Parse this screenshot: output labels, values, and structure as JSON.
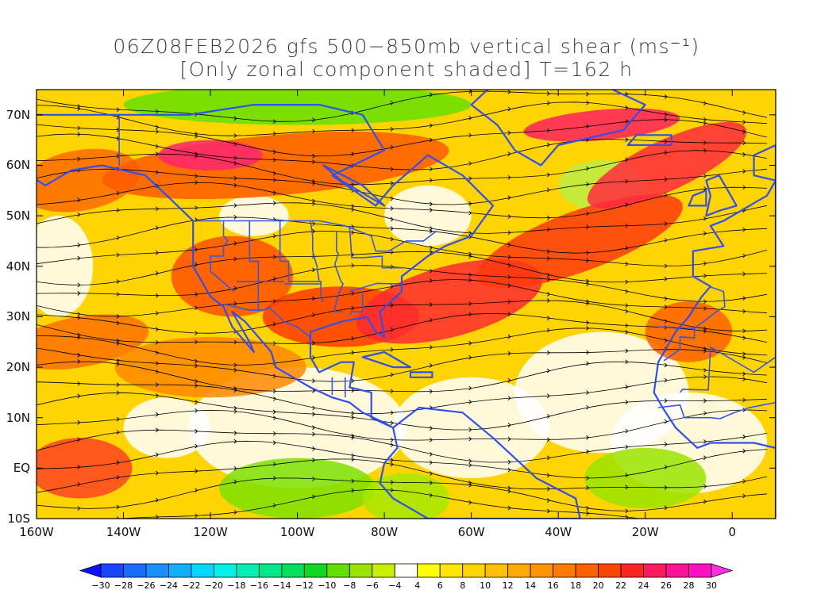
{
  "title": {
    "line1": "06Z08FEB2026 gfs 500−850mb vertical shear (ms⁻¹)",
    "line2": "[Only zonal component shaded] T=162 h"
  },
  "map": {
    "lon_range": [
      -160,
      10
    ],
    "lat_range": [
      -10,
      75
    ],
    "lat_ticks": [
      {
        "value": 70,
        "label": "70N"
      },
      {
        "value": 60,
        "label": "60N"
      },
      {
        "value": 50,
        "label": "50N"
      },
      {
        "value": 40,
        "label": "40N"
      },
      {
        "value": 30,
        "label": "30N"
      },
      {
        "value": 20,
        "label": "20N"
      },
      {
        "value": 10,
        "label": "10N"
      },
      {
        "value": 0,
        "label": "EQ"
      },
      {
        "value": -10,
        "label": "10S"
      }
    ],
    "lon_ticks": [
      {
        "value": -160,
        "label": "160W"
      },
      {
        "value": -140,
        "label": "140W"
      },
      {
        "value": -120,
        "label": "120W"
      },
      {
        "value": -100,
        "label": "100W"
      },
      {
        "value": -80,
        "label": "80W"
      },
      {
        "value": -60,
        "label": "60W"
      },
      {
        "value": -40,
        "label": "40W"
      },
      {
        "value": -20,
        "label": "20W"
      },
      {
        "value": 0,
        "label": "0"
      }
    ]
  },
  "colorbar": {
    "labels": [
      "-30",
      "-28",
      "-26",
      "-24",
      "-22",
      "-20",
      "-18",
      "-16",
      "-14",
      "-12",
      "-10",
      "-8",
      "-6",
      "-4",
      "4",
      "6",
      "8",
      "10",
      "12",
      "14",
      "16",
      "18",
      "20",
      "22",
      "24",
      "26",
      "28",
      "30"
    ],
    "colors": [
      "#1010ff",
      "#1a44ff",
      "#1a6cff",
      "#1890ff",
      "#10b0ff",
      "#00d8ff",
      "#00f0ea",
      "#00f0b4",
      "#00e88a",
      "#00e05a",
      "#10d820",
      "#64e000",
      "#9ae400",
      "#c8f000",
      "#ffffff",
      "#ffff00",
      "#ffe600",
      "#ffd400",
      "#ffc000",
      "#ffaa00",
      "#ff9400",
      "#ff7c00",
      "#ff6000",
      "#ff4400",
      "#ff2424",
      "#ff1a60",
      "#ff1296",
      "#ff10c0",
      "#ff30e0"
    ]
  }
}
